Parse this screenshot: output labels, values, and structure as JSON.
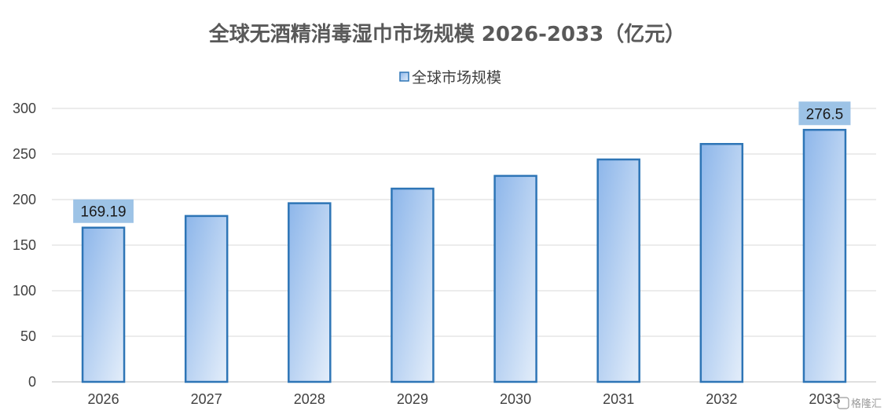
{
  "chart_data": {
    "type": "bar",
    "title": "全球无酒精消毒湿巾市场规模 2026-2033（亿元）",
    "categories": [
      "2026",
      "2027",
      "2028",
      "2029",
      "2030",
      "2031",
      "2032",
      "2033"
    ],
    "series": [
      {
        "name": "全球市场规模",
        "values": [
          169.19,
          182,
          196,
          212,
          226,
          244,
          261,
          276.5
        ]
      }
    ],
    "data_labels": [
      {
        "index": 0,
        "text": "169.19"
      },
      {
        "index": 7,
        "text": "276.5"
      }
    ],
    "ylim": [
      0,
      300
    ],
    "yticks": [
      0,
      50,
      100,
      150,
      200,
      250,
      300
    ],
    "grid": true,
    "legend": "top-center",
    "colors": {
      "bar_top": "#8db6ea",
      "bar_bottom": "#dce8f8",
      "bar_edge": "#2e75b6",
      "label_box": "#9dc3e6",
      "grid": "#d9d9d9"
    }
  },
  "watermark": "格隆汇"
}
